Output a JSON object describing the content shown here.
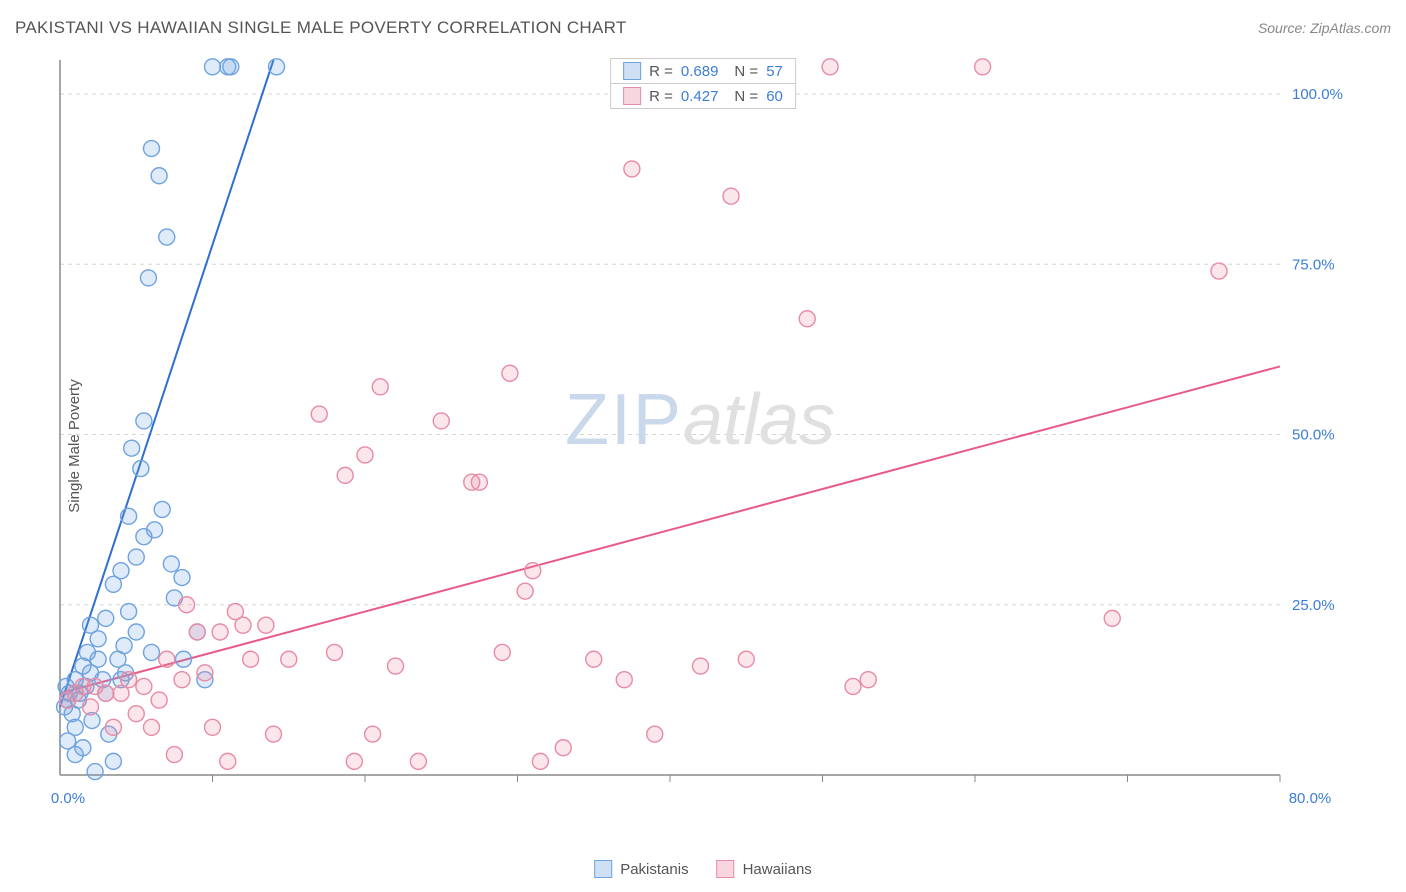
{
  "title": "PAKISTANI VS HAWAIIAN SINGLE MALE POVERTY CORRELATION CHART",
  "source": "Source: ZipAtlas.com",
  "y_axis_label": "Single Male Poverty",
  "watermark": {
    "part1": "ZIP",
    "part2": "atlas"
  },
  "chart": {
    "type": "scatter",
    "background_color": "#ffffff",
    "grid_color": "#d5d5d5",
    "axis_color": "#888888",
    "tick_label_color": "#3b7dd8",
    "xlim": [
      0,
      80
    ],
    "ylim": [
      0,
      105
    ],
    "y_ticks": [
      25,
      50,
      75,
      100
    ],
    "y_tick_labels": [
      "25.0%",
      "50.0%",
      "75.0%",
      "100.0%"
    ],
    "x_ticks": [
      10,
      20,
      30,
      40,
      50,
      60,
      70,
      80
    ],
    "x_max_label": "80.0%",
    "origin_label": "0.0%",
    "marker_radius": 8,
    "marker_stroke_width": 1.4,
    "marker_fill_opacity": 0.22,
    "trend_line_width": 2
  },
  "legend_top": [
    {
      "swatch_fill": "#cfe0f5",
      "swatch_border": "#6fa3e0",
      "r_label": "R =",
      "r_value": "0.689",
      "n_label": "N =",
      "n_value": "57"
    },
    {
      "swatch_fill": "#f7d6df",
      "swatch_border": "#e88ba6",
      "r_label": "R =",
      "r_value": "0.427",
      "n_label": "N =",
      "n_value": "60"
    }
  ],
  "legend_bottom": [
    {
      "swatch_fill": "#cfe0f5",
      "swatch_border": "#6fa3e0",
      "label": "Pakistanis"
    },
    {
      "swatch_fill": "#f7d6df",
      "swatch_border": "#e88ba6",
      "label": "Hawaiians"
    }
  ],
  "series": [
    {
      "name": "Pakistanis",
      "color_stroke": "#6fa3e0",
      "color_fill": "#6fa3e0",
      "trend_color": "#2f6fd0",
      "trend": {
        "x1": 0,
        "y1": 10,
        "x2": 14,
        "y2": 105
      },
      "points": [
        [
          0.3,
          10
        ],
        [
          0.4,
          13
        ],
        [
          0.5,
          11
        ],
        [
          0.6,
          12
        ],
        [
          0.8,
          9
        ],
        [
          1.0,
          14
        ],
        [
          1.0,
          7
        ],
        [
          1.2,
          11
        ],
        [
          1.3,
          12
        ],
        [
          1.5,
          16
        ],
        [
          1.5,
          4
        ],
        [
          1.7,
          13
        ],
        [
          1.8,
          18
        ],
        [
          2.0,
          22
        ],
        [
          2.0,
          15
        ],
        [
          2.1,
          8
        ],
        [
          2.3,
          0.5
        ],
        [
          2.5,
          17
        ],
        [
          2.5,
          20
        ],
        [
          3.0,
          23
        ],
        [
          3.0,
          12
        ],
        [
          3.2,
          6
        ],
        [
          3.5,
          28
        ],
        [
          3.5,
          2
        ],
        [
          4.0,
          30
        ],
        [
          4.0,
          14
        ],
        [
          4.2,
          19
        ],
        [
          4.5,
          38
        ],
        [
          4.5,
          24
        ],
        [
          4.7,
          48
        ],
        [
          5.0,
          32
        ],
        [
          5.0,
          21
        ],
        [
          5.3,
          45
        ],
        [
          5.5,
          52
        ],
        [
          5.5,
          35
        ],
        [
          5.8,
          73
        ],
        [
          6.0,
          92
        ],
        [
          6.2,
          36
        ],
        [
          6.5,
          88
        ],
        [
          6.7,
          39
        ],
        [
          7.0,
          79
        ],
        [
          7.3,
          31
        ],
        [
          8.0,
          29
        ],
        [
          8.1,
          17
        ],
        [
          9.5,
          14
        ],
        [
          10.0,
          104
        ],
        [
          11.0,
          104
        ],
        [
          11.2,
          104
        ],
        [
          14.2,
          104
        ],
        [
          0.5,
          5
        ],
        [
          1.0,
          3
        ],
        [
          2.8,
          14
        ],
        [
          3.8,
          17
        ],
        [
          4.3,
          15
        ],
        [
          9.0,
          21
        ],
        [
          6.0,
          18
        ],
        [
          7.5,
          26
        ]
      ]
    },
    {
      "name": "Hawaiians",
      "color_stroke": "#e88ba6",
      "color_fill": "#e88ba6",
      "trend_color": "#e85a87",
      "trend": {
        "x1": 0,
        "y1": 12,
        "x2": 80,
        "y2": 60
      },
      "points": [
        [
          0.5,
          11
        ],
        [
          1.0,
          12
        ],
        [
          1.5,
          13
        ],
        [
          2.0,
          10
        ],
        [
          2.3,
          13
        ],
        [
          3.0,
          12
        ],
        [
          3.5,
          7
        ],
        [
          4.0,
          12
        ],
        [
          4.5,
          14
        ],
        [
          5.0,
          9
        ],
        [
          5.5,
          13
        ],
        [
          6.0,
          7
        ],
        [
          6.5,
          11
        ],
        [
          7.0,
          17
        ],
        [
          7.5,
          3
        ],
        [
          8.0,
          14
        ],
        [
          8.3,
          25
        ],
        [
          9.0,
          21
        ],
        [
          9.5,
          15
        ],
        [
          10.0,
          7
        ],
        [
          10.5,
          21
        ],
        [
          11.0,
          2
        ],
        [
          11.5,
          24
        ],
        [
          12.0,
          22
        ],
        [
          12.5,
          17
        ],
        [
          13.5,
          22
        ],
        [
          14.0,
          6
        ],
        [
          15.0,
          17
        ],
        [
          17.0,
          53
        ],
        [
          18.0,
          18
        ],
        [
          18.7,
          44
        ],
        [
          19.3,
          2
        ],
        [
          20.0,
          47
        ],
        [
          20.5,
          6
        ],
        [
          21.0,
          57
        ],
        [
          22.0,
          16
        ],
        [
          23.5,
          2
        ],
        [
          25.0,
          52
        ],
        [
          27.0,
          43
        ],
        [
          27.5,
          43
        ],
        [
          29.0,
          18
        ],
        [
          29.5,
          59
        ],
        [
          30.5,
          27
        ],
        [
          31.0,
          30
        ],
        [
          31.5,
          2
        ],
        [
          33.0,
          4
        ],
        [
          35.0,
          17
        ],
        [
          37.0,
          14
        ],
        [
          37.5,
          89
        ],
        [
          39.0,
          6
        ],
        [
          42.0,
          16
        ],
        [
          44.0,
          85
        ],
        [
          45.0,
          17
        ],
        [
          49.0,
          67
        ],
        [
          50.5,
          104
        ],
        [
          52.0,
          13
        ],
        [
          53.0,
          14
        ],
        [
          60.5,
          104
        ],
        [
          69.0,
          23
        ],
        [
          76.0,
          74
        ]
      ]
    }
  ]
}
